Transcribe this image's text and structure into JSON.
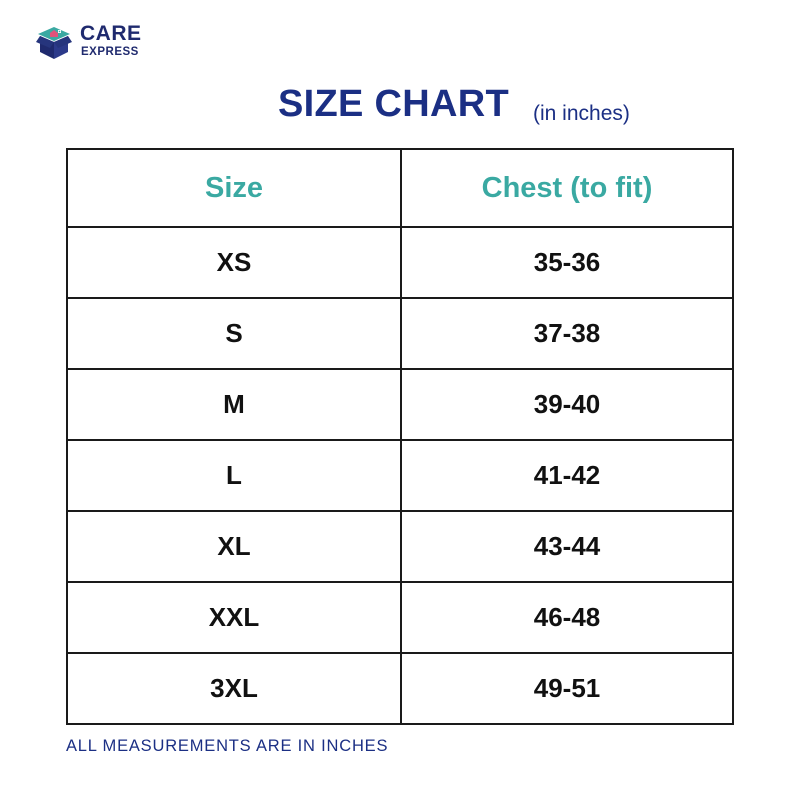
{
  "brand": {
    "name_line1": "CARE",
    "name_line2": "EXPRESS",
    "icon": "box-icon",
    "colors": {
      "navy": "#1f2a6e",
      "teal": "#3aa9a2",
      "pink": "#e0527a"
    }
  },
  "title": "SIZE CHART",
  "subtitle": "(in inches)",
  "table": {
    "headers": [
      "Size",
      "Chest (to fit)"
    ],
    "rows": [
      [
        "XS",
        "35-36"
      ],
      [
        "S",
        "37-38"
      ],
      [
        "M",
        "39-40"
      ],
      [
        "L",
        "41-42"
      ],
      [
        "XL",
        "43-44"
      ],
      [
        "XXL",
        "46-48"
      ],
      [
        "3XL",
        "49-51"
      ]
    ]
  },
  "footnote": "ALL MEASUREMENTS ARE IN INCHES"
}
